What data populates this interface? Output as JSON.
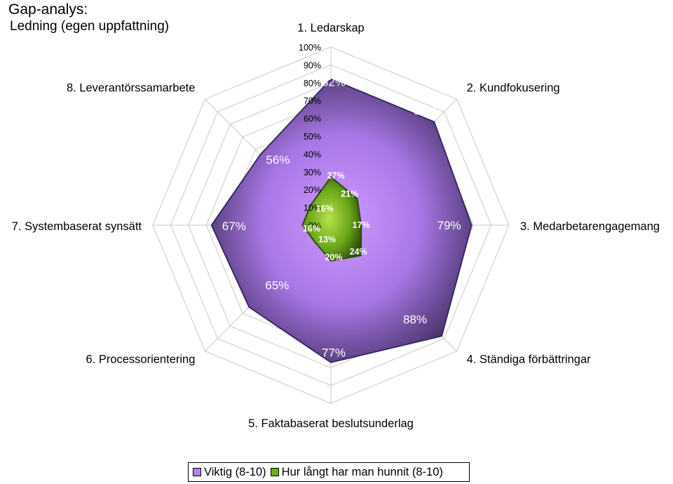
{
  "title": "Gap-analys:",
  "subtitle": "Ledning (egen uppfattning)",
  "chart_data": {
    "type": "radar",
    "categories": [
      "1. Ledarskap",
      "2. Kundfokusering",
      "3. Medarbetarengagemang",
      "4. Ständiga förbättringar",
      "5. Faktabaserat beslutsunderlag",
      "6. Processorientering",
      "7. Systembaserat synsätt",
      "8. Leverantörssamarbete"
    ],
    "series": [
      {
        "name": "Viktig (8-10)",
        "values": [
          82,
          82,
          79,
          88,
          77,
          65,
          67,
          56
        ],
        "labels": [
          "82%",
          "82%",
          "79%",
          "88%",
          "77%",
          "65%",
          "67%",
          "56%"
        ],
        "color": "#b480f0",
        "edge_color": "#3c2a5e"
      },
      {
        "name": "Hur långt har man hunnit (8-10)",
        "values": [
          27,
          21,
          17,
          24,
          20,
          13,
          16,
          16
        ],
        "labels": [
          "27%",
          "21%",
          "17%",
          "24%",
          "20%",
          "13%",
          "16%",
          "16%"
        ],
        "color": "#6fae1c",
        "edge_color": "#2d4a0b"
      }
    ],
    "radial_ticks": [
      "0%",
      "10%",
      "20%",
      "30%",
      "40%",
      "50%",
      "60%",
      "70%",
      "80%",
      "90%",
      "100%"
    ],
    "rlim": [
      0,
      100
    ],
    "grid": true,
    "legend_position": "bottom"
  }
}
